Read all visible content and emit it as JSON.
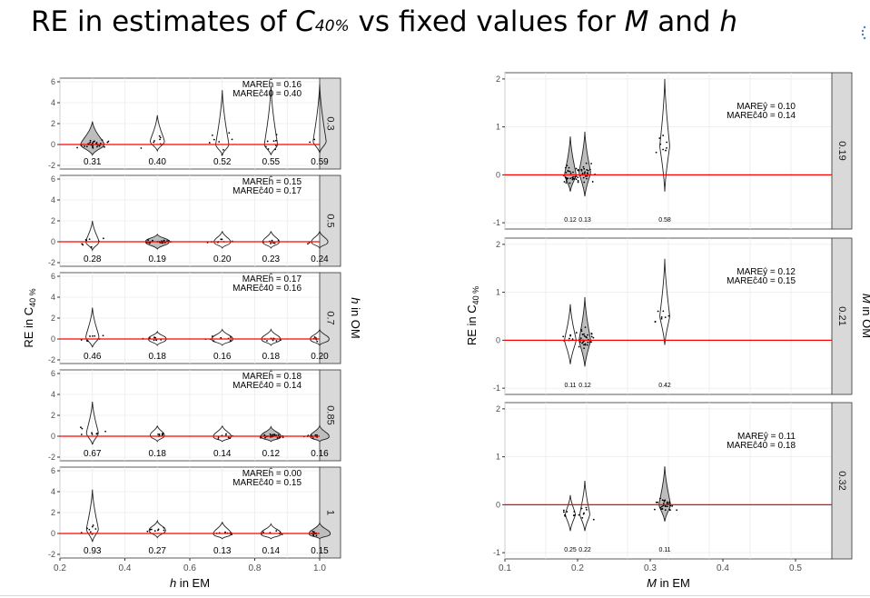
{
  "title": {
    "prefix": "RE in estimates of ",
    "c": "C",
    "c_sub": "40%",
    "middle": " vs fixed values for ",
    "m": "M",
    "and": " and ",
    "h": "h"
  },
  "colors": {
    "zero_line": "#ff0000",
    "strip": "#d9d9d9",
    "violin_fill": "#bdbdbd",
    "grid": "#ebebeb"
  },
  "chart_data": [
    {
      "type": "scatter",
      "subtype": "violin+jitter facets",
      "xlabel_var": "h",
      "xlabel_rest": " in EM",
      "ylabel": "RE in C",
      "ylabel_sub": "40 %",
      "strip_title_var": "h",
      "strip_title_rest": " in OM",
      "xlim": [
        0.2,
        1.0
      ],
      "ylim": [
        -2,
        6
      ],
      "x_ticks": [
        "0.2",
        "0.4",
        "0.6",
        "0.8",
        "1.0"
      ],
      "y_ticks": [
        "-2",
        "0",
        "2",
        "4",
        "6"
      ],
      "panels": [
        {
          "strip": "0.3",
          "mare_h": "MAREĥ = 0.16",
          "mare_c": "MAREĉ40 = 0.40",
          "groups": [
            {
              "x": 0.3,
              "label": "0.31",
              "lo": -1.0,
              "hi": 2.2,
              "mid": 0.0,
              "w": 1.0,
              "fill": true
            },
            {
              "x": 0.5,
              "label": "0.40",
              "lo": -0.6,
              "hi": 2.8,
              "mid": 0.3,
              "w": 0.6,
              "fill": false
            },
            {
              "x": 0.7,
              "label": "0.52",
              "lo": -1.0,
              "hi": 5.2,
              "mid": 0.0,
              "w": 0.55,
              "fill": false
            },
            {
              "x": 0.85,
              "label": "0.55",
              "lo": -1.0,
              "hi": 5.6,
              "mid": 0.0,
              "w": 0.55,
              "fill": false
            },
            {
              "x": 1.0,
              "label": "0.59",
              "lo": -0.8,
              "hi": 5.8,
              "mid": 0.3,
              "w": 0.55,
              "fill": false
            }
          ]
        },
        {
          "strip": "0.5",
          "mare_h": "MAREĥ = 0.15",
          "mare_c": "MAREĉ40 = 0.17",
          "groups": [
            {
              "x": 0.3,
              "label": "0.28",
              "lo": -0.8,
              "hi": 2.0,
              "mid": 0.0,
              "w": 0.55,
              "fill": false
            },
            {
              "x": 0.5,
              "label": "0.19",
              "lo": -0.7,
              "hi": 0.7,
              "mid": 0.0,
              "w": 1.0,
              "fill": true
            },
            {
              "x": 0.7,
              "label": "0.20",
              "lo": -0.6,
              "hi": 1.0,
              "mid": 0.0,
              "w": 0.7,
              "fill": false
            },
            {
              "x": 0.85,
              "label": "0.23",
              "lo": -0.6,
              "hi": 1.0,
              "mid": 0.0,
              "w": 0.7,
              "fill": false
            },
            {
              "x": 1.0,
              "label": "0.24",
              "lo": -0.6,
              "hi": 1.0,
              "mid": 0.0,
              "w": 0.7,
              "fill": false
            }
          ]
        },
        {
          "strip": "0.7",
          "mare_h": "MAREĥ = 0.17",
          "mare_c": "MAREĉ40 = 0.16",
          "groups": [
            {
              "x": 0.3,
              "label": "0.46",
              "lo": -0.8,
              "hi": 3.0,
              "mid": 0.2,
              "w": 0.55,
              "fill": false
            },
            {
              "x": 0.5,
              "label": "0.18",
              "lo": -0.6,
              "hi": 0.7,
              "mid": 0.0,
              "w": 0.75,
              "fill": false
            },
            {
              "x": 0.7,
              "label": "0.16",
              "lo": -0.6,
              "hi": 0.9,
              "mid": 0.0,
              "w": 0.9,
              "fill": false
            },
            {
              "x": 0.85,
              "label": "0.18",
              "lo": -0.6,
              "hi": 0.9,
              "mid": 0.0,
              "w": 0.8,
              "fill": false
            },
            {
              "x": 1.0,
              "label": "0.20",
              "lo": -0.6,
              "hi": 0.9,
              "mid": 0.0,
              "w": 0.8,
              "fill": false
            }
          ]
        },
        {
          "strip": "0.85",
          "mare_h": "MAREĥ = 0.18",
          "mare_c": "MAREĉ40 = 0.14",
          "groups": [
            {
              "x": 0.3,
              "label": "0.67",
              "lo": -0.8,
              "hi": 3.3,
              "mid": 0.3,
              "w": 0.5,
              "fill": false
            },
            {
              "x": 0.5,
              "label": "0.18",
              "lo": -0.5,
              "hi": 1.0,
              "mid": 0.1,
              "w": 0.6,
              "fill": false
            },
            {
              "x": 0.7,
              "label": "0.14",
              "lo": -0.5,
              "hi": 1.0,
              "mid": 0.0,
              "w": 0.75,
              "fill": false
            },
            {
              "x": 0.85,
              "label": "0.12",
              "lo": -0.5,
              "hi": 0.9,
              "mid": 0.0,
              "w": 0.85,
              "fill": true
            },
            {
              "x": 1.0,
              "label": "0.16",
              "lo": -0.5,
              "hi": 1.0,
              "mid": 0.0,
              "w": 0.8,
              "fill": true
            }
          ]
        },
        {
          "strip": "1",
          "mare_h": "MAREĥ = 0.00",
          "mare_c": "MAREĉ40 = 0.15",
          "groups": [
            {
              "x": 0.3,
              "label": "0.93",
              "lo": -0.8,
              "hi": 4.2,
              "mid": 0.4,
              "w": 0.5,
              "fill": false
            },
            {
              "x": 0.5,
              "label": "0.27",
              "lo": -0.4,
              "hi": 1.2,
              "mid": 0.3,
              "w": 0.7,
              "fill": false
            },
            {
              "x": 0.7,
              "label": "0.13",
              "lo": -0.5,
              "hi": 1.1,
              "mid": 0.0,
              "w": 0.75,
              "fill": false
            },
            {
              "x": 0.85,
              "label": "0.14",
              "lo": -0.5,
              "hi": 0.9,
              "mid": 0.0,
              "w": 0.85,
              "fill": false
            },
            {
              "x": 1.0,
              "label": "0.15",
              "lo": -0.5,
              "hi": 1.0,
              "mid": 0.0,
              "w": 0.9,
              "fill": true
            }
          ]
        }
      ]
    },
    {
      "type": "scatter",
      "subtype": "violin+jitter facets",
      "xlabel_var": "M",
      "xlabel_rest": " in EM",
      "ylabel": "RE in C",
      "ylabel_sub": "40 %",
      "strip_title_var": "M",
      "strip_title_rest": " in OM",
      "xlim": [
        0.1,
        0.55
      ],
      "ylim": [
        -1,
        2
      ],
      "x_ticks": [
        "0.1",
        "0.2",
        "0.3",
        "0.4",
        "0.5"
      ],
      "y_ticks": [
        "-1",
        "0",
        "1",
        "2"
      ],
      "panels": [
        {
          "strip": "0.19",
          "mare_h": "MAREŷ = 0.10",
          "mare_c": "MAREĉ40 = 0.14",
          "groups": [
            {
              "x": 0.19,
              "label": "0.12",
              "lo": -0.35,
              "hi": 0.8,
              "mid": 0.0,
              "w": 0.7,
              "fill": true
            },
            {
              "x": 0.21,
              "label": "0.13",
              "lo": -0.45,
              "hi": 0.9,
              "mid": 0.05,
              "w": 0.7,
              "fill": true
            },
            {
              "x": 0.32,
              "label": "0.58",
              "lo": -0.35,
              "hi": 2.0,
              "mid": 0.6,
              "w": 0.6,
              "fill": false
            }
          ]
        },
        {
          "strip": "0.21",
          "mare_h": "MAREŷ = 0.12",
          "mare_c": "MAREĉ40 = 0.15",
          "groups": [
            {
              "x": 0.19,
              "label": "0.11",
              "lo": -0.5,
              "hi": 0.75,
              "mid": 0.0,
              "w": 0.7,
              "fill": false
            },
            {
              "x": 0.21,
              "label": "0.12",
              "lo": -0.55,
              "hi": 0.9,
              "mid": 0.0,
              "w": 0.7,
              "fill": true
            },
            {
              "x": 0.32,
              "label": "0.42",
              "lo": -0.1,
              "hi": 1.7,
              "mid": 0.5,
              "w": 0.6,
              "fill": false
            }
          ]
        },
        {
          "strip": "0.32",
          "mare_h": "MAREŷ = 0.11",
          "mare_c": "MAREĉ40 = 0.18",
          "groups": [
            {
              "x": 0.19,
              "label": "0.25",
              "lo": -0.55,
              "hi": 0.2,
              "mid": -0.2,
              "w": 0.6,
              "fill": false
            },
            {
              "x": 0.21,
              "label": "0.22",
              "lo": -0.55,
              "hi": 0.5,
              "mid": -0.2,
              "w": 0.6,
              "fill": false
            },
            {
              "x": 0.32,
              "label": "0.11",
              "lo": -0.35,
              "hi": 0.8,
              "mid": 0.0,
              "w": 0.7,
              "fill": true
            }
          ]
        }
      ]
    }
  ]
}
